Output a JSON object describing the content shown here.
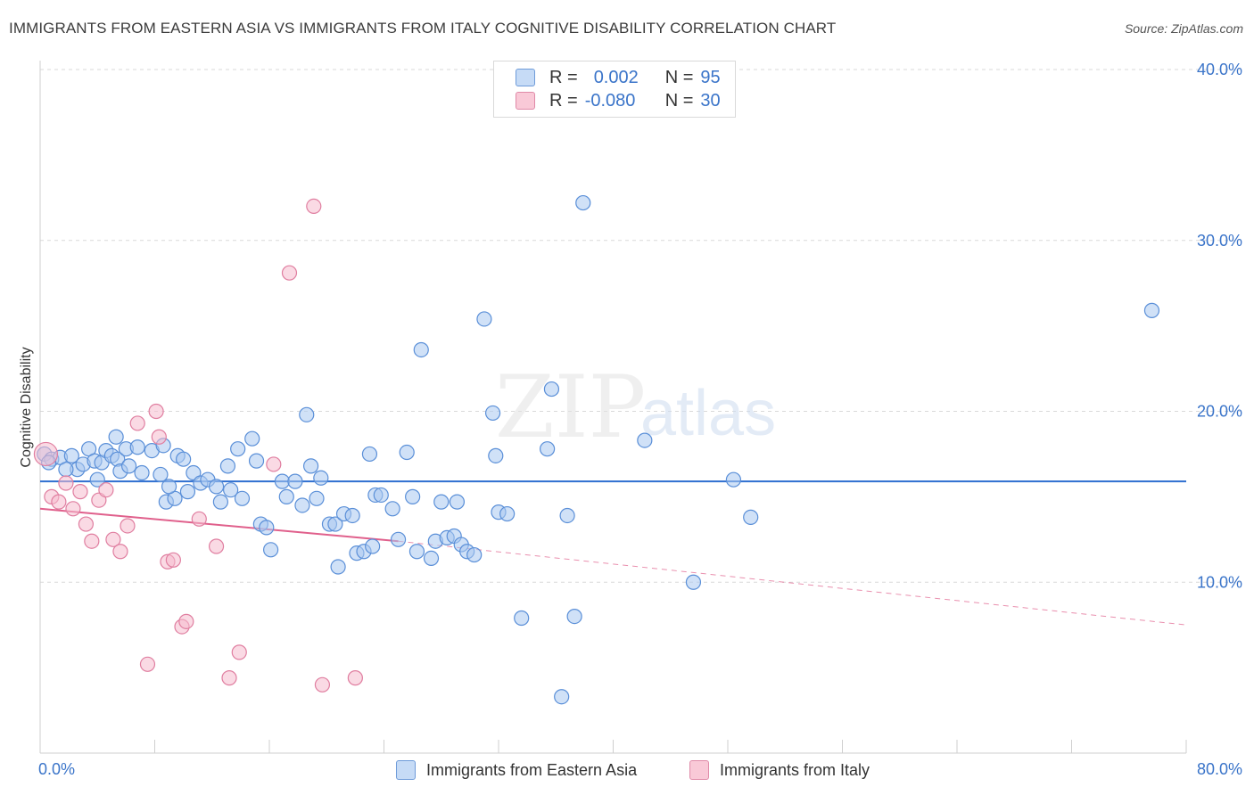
{
  "title": "IMMIGRANTS FROM EASTERN ASIA VS IMMIGRANTS FROM ITALY COGNITIVE DISABILITY CORRELATION CHART",
  "source": "Source: ZipAtlas.com",
  "watermark": {
    "zip": "ZIP",
    "atlas": "atlas"
  },
  "colors": {
    "blue_fill": "#aac8f0",
    "blue_stroke": "#5a8fd8",
    "blue_line": "#2f6fd0",
    "pink_fill": "#f6bccd",
    "pink_stroke": "#e07ea0",
    "pink_line": "#e0608c",
    "value_text": "#3a74c9",
    "grid": "#d9d9d9"
  },
  "legend": {
    "rows": [
      {
        "r_label": "R =",
        "r_value": "0.002",
        "n_label": "N =",
        "n_value": "95"
      },
      {
        "r_label": "R =",
        "r_value": "-0.080",
        "n_label": "N =",
        "n_value": "30"
      }
    ]
  },
  "chart_data": {
    "type": "scatter",
    "title": "IMMIGRANTS FROM EASTERN ASIA VS IMMIGRANTS FROM ITALY COGNITIVE DISABILITY CORRELATION CHART",
    "xlabel": "",
    "ylabel": "Cognitive Disability",
    "xlim": [
      0,
      80
    ],
    "ylim": [
      0,
      40
    ],
    "x_tick_labels": [
      "0.0%",
      "80.0%"
    ],
    "y_ticks": [
      10,
      20,
      30,
      40
    ],
    "y_tick_labels": [
      "10.0%",
      "20.0%",
      "30.0%",
      "40.0%"
    ],
    "grid": true,
    "series": [
      {
        "name": "Immigrants from Eastern Asia",
        "r": 0.002,
        "n": 95,
        "trend": {
          "x": [
            0,
            80
          ],
          "y": [
            15.9,
            15.9
          ],
          "dashed_extension": false
        },
        "points": [
          [
            0.3,
            17.5
          ],
          [
            0.8,
            17.2
          ],
          [
            1.4,
            17.3
          ],
          [
            2.2,
            17.4
          ],
          [
            2.6,
            16.6
          ],
          [
            3.0,
            16.9
          ],
          [
            3.4,
            17.8
          ],
          [
            3.8,
            17.1
          ],
          [
            4.3,
            17.0
          ],
          [
            4.6,
            17.7
          ],
          [
            5.0,
            17.4
          ],
          [
            5.4,
            17.2
          ],
          [
            5.6,
            16.5
          ],
          [
            5.3,
            18.5
          ],
          [
            6.0,
            17.8
          ],
          [
            6.2,
            16.8
          ],
          [
            6.8,
            17.9
          ],
          [
            7.1,
            16.4
          ],
          [
            7.8,
            17.7
          ],
          [
            8.4,
            16.3
          ],
          [
            8.6,
            18.0
          ],
          [
            8.8,
            14.7
          ],
          [
            9.4,
            14.9
          ],
          [
            9.6,
            17.4
          ],
          [
            10.0,
            17.2
          ],
          [
            10.3,
            15.3
          ],
          [
            10.7,
            16.4
          ],
          [
            11.2,
            15.8
          ],
          [
            11.7,
            16.0
          ],
          [
            12.3,
            15.6
          ],
          [
            12.6,
            14.7
          ],
          [
            13.1,
            16.8
          ],
          [
            13.3,
            15.4
          ],
          [
            13.8,
            17.8
          ],
          [
            14.1,
            14.9
          ],
          [
            14.8,
            18.4
          ],
          [
            15.1,
            17.1
          ],
          [
            15.4,
            13.4
          ],
          [
            15.8,
            13.2
          ],
          [
            16.1,
            11.9
          ],
          [
            16.9,
            15.9
          ],
          [
            17.2,
            15.0
          ],
          [
            17.8,
            15.9
          ],
          [
            18.3,
            14.5
          ],
          [
            18.6,
            19.8
          ],
          [
            18.9,
            16.8
          ],
          [
            19.3,
            14.9
          ],
          [
            19.6,
            16.1
          ],
          [
            20.2,
            13.4
          ],
          [
            20.6,
            13.4
          ],
          [
            20.8,
            10.9
          ],
          [
            21.2,
            14.0
          ],
          [
            21.8,
            13.9
          ],
          [
            22.1,
            11.7
          ],
          [
            22.6,
            11.8
          ],
          [
            23.0,
            17.5
          ],
          [
            23.2,
            12.1
          ],
          [
            23.4,
            15.1
          ],
          [
            23.8,
            15.1
          ],
          [
            24.6,
            14.3
          ],
          [
            25.0,
            12.5
          ],
          [
            25.6,
            17.6
          ],
          [
            26.0,
            15.0
          ],
          [
            26.3,
            11.8
          ],
          [
            26.6,
            23.6
          ],
          [
            27.3,
            11.4
          ],
          [
            27.6,
            12.4
          ],
          [
            28.0,
            14.7
          ],
          [
            28.4,
            12.6
          ],
          [
            28.9,
            12.7
          ],
          [
            29.1,
            14.7
          ],
          [
            29.4,
            12.2
          ],
          [
            29.8,
            11.8
          ],
          [
            30.3,
            11.6
          ],
          [
            31.0,
            25.4
          ],
          [
            31.6,
            19.9
          ],
          [
            31.8,
            17.4
          ],
          [
            32.0,
            14.1
          ],
          [
            32.6,
            14.0
          ],
          [
            33.6,
            7.9
          ],
          [
            35.4,
            17.8
          ],
          [
            35.7,
            21.3
          ],
          [
            36.4,
            3.3
          ],
          [
            36.8,
            13.9
          ],
          [
            37.3,
            8.0
          ],
          [
            37.9,
            32.2
          ],
          [
            42.2,
            18.3
          ],
          [
            45.6,
            10.0
          ],
          [
            48.4,
            16.0
          ],
          [
            49.6,
            13.8
          ],
          [
            77.6,
            25.9
          ],
          [
            0.6,
            17.0
          ],
          [
            1.8,
            16.6
          ],
          [
            4.0,
            16.0
          ],
          [
            9.0,
            15.6
          ]
        ]
      },
      {
        "name": "Immigrants from Italy",
        "r": -0.08,
        "n": 30,
        "trend": {
          "x": [
            0,
            25
          ],
          "y": [
            14.3,
            12.4
          ],
          "dashed_extension": true,
          "extension_to": [
            80,
            7.5
          ]
        },
        "points": [
          [
            0.4,
            17.5
          ],
          [
            0.8,
            15.0
          ],
          [
            1.3,
            14.7
          ],
          [
            1.8,
            15.8
          ],
          [
            2.3,
            14.3
          ],
          [
            2.8,
            15.3
          ],
          [
            3.2,
            13.4
          ],
          [
            3.6,
            12.4
          ],
          [
            4.1,
            14.8
          ],
          [
            4.6,
            15.4
          ],
          [
            5.1,
            12.5
          ],
          [
            5.6,
            11.8
          ],
          [
            6.1,
            13.3
          ],
          [
            6.8,
            19.3
          ],
          [
            7.5,
            5.2
          ],
          [
            8.1,
            20.0
          ],
          [
            8.3,
            18.5
          ],
          [
            8.9,
            11.2
          ],
          [
            9.3,
            11.3
          ],
          [
            9.9,
            7.4
          ],
          [
            10.2,
            7.7
          ],
          [
            11.1,
            13.7
          ],
          [
            12.3,
            12.1
          ],
          [
            13.2,
            4.4
          ],
          [
            13.9,
            5.9
          ],
          [
            16.3,
            16.9
          ],
          [
            17.4,
            28.1
          ],
          [
            19.1,
            32.0
          ],
          [
            19.7,
            4.0
          ],
          [
            22.0,
            4.4
          ]
        ]
      }
    ]
  }
}
